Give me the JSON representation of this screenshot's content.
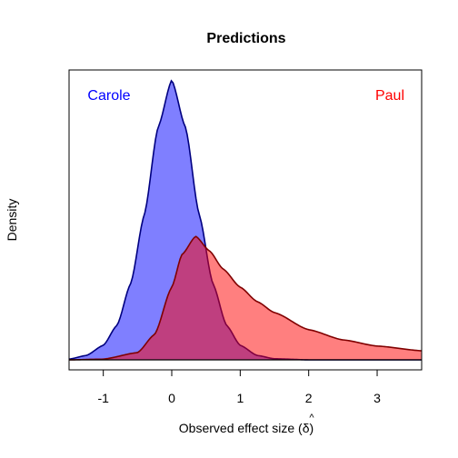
{
  "chart_data": {
    "type": "area",
    "title": "Predictions",
    "xlabel": "Observed effect size (",
    "xlabel_symbol": "δ",
    "xlabel_close": ")",
    "ylabel": "Density",
    "xlim": [
      -1.5,
      3.65
    ],
    "ylim": [
      0,
      1.0
    ],
    "x_ticks": [
      -1,
      0,
      1,
      2,
      3
    ],
    "x_tick_labels": [
      "-1",
      "0",
      "1",
      "2",
      "3"
    ],
    "y_ticks_shown": false,
    "grid": false,
    "series": [
      {
        "name": "Carole",
        "color": "#0000ff",
        "fill": "#8080ff",
        "label_position": "top-left",
        "x": [
          -1.5,
          -1.25,
          -1.0,
          -0.8,
          -0.6,
          -0.4,
          -0.2,
          0.0,
          0.2,
          0.4,
          0.6,
          0.8,
          1.0,
          1.25,
          1.5,
          2.0,
          2.5,
          3.0,
          3.65
        ],
        "values": [
          0.002,
          0.012,
          0.04,
          0.095,
          0.21,
          0.4,
          0.64,
          0.77,
          0.64,
          0.4,
          0.21,
          0.095,
          0.04,
          0.012,
          0.003,
          0.0,
          0.0,
          0.0,
          0.0
        ]
      },
      {
        "name": "Paul",
        "color": "#ff0000",
        "fill": "#ff8080",
        "label_position": "top-right",
        "x": [
          -1.5,
          -1.0,
          -0.5,
          -0.25,
          0.0,
          0.15,
          0.35,
          0.55,
          0.75,
          1.0,
          1.25,
          1.5,
          2.0,
          2.5,
          3.0,
          3.65
        ],
        "values": [
          0.0,
          0.002,
          0.02,
          0.07,
          0.2,
          0.29,
          0.34,
          0.3,
          0.25,
          0.2,
          0.16,
          0.13,
          0.083,
          0.055,
          0.038,
          0.025
        ]
      }
    ]
  }
}
